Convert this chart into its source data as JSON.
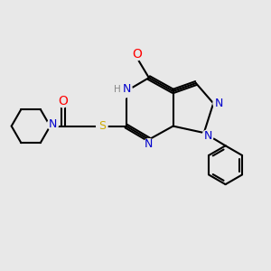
{
  "background_color": "#e8e8e8",
  "bond_color": "#000000",
  "atom_colors": {
    "N": "#0000cc",
    "O": "#ff0000",
    "S": "#ccaa00",
    "H": "#888888",
    "C": "#000000"
  },
  "figsize": [
    3.0,
    3.0
  ],
  "dpi": 100
}
